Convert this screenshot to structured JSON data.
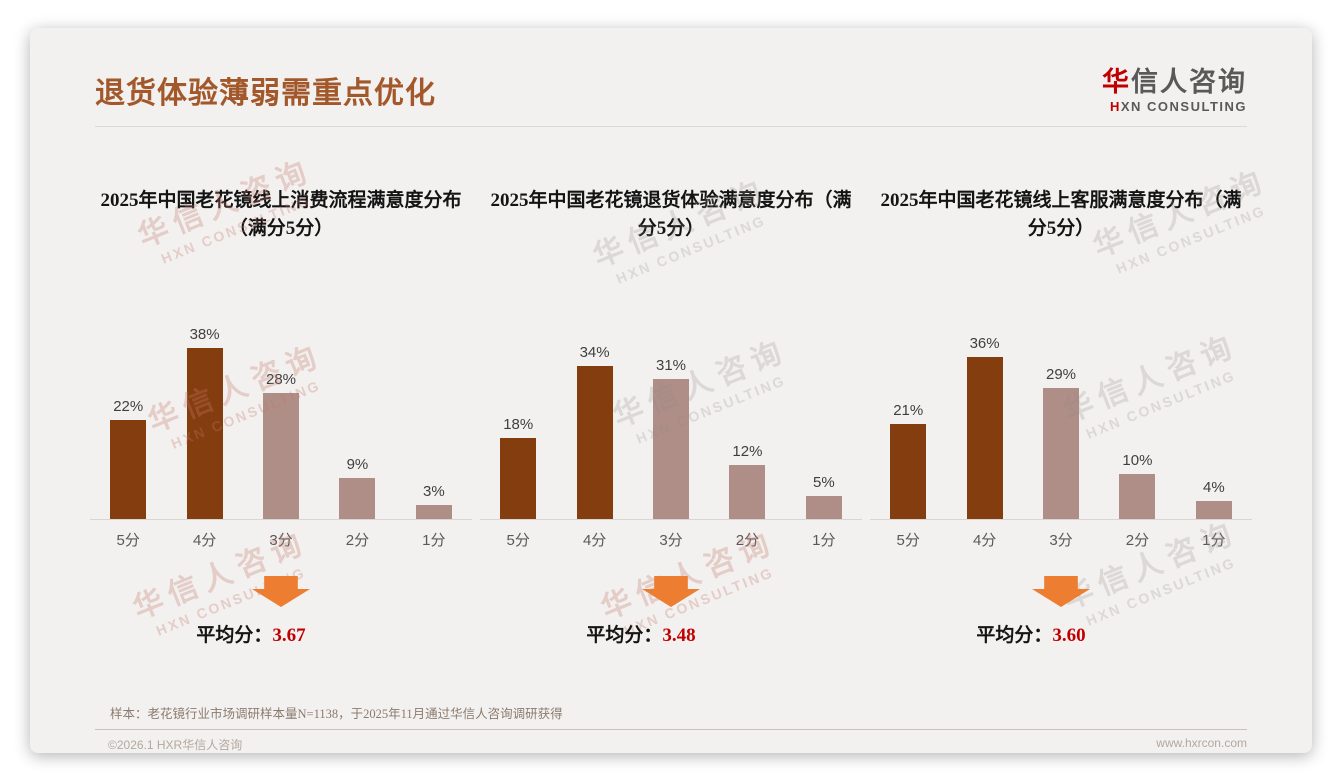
{
  "page": {
    "title": "退货体验薄弱需重点优化",
    "logo": {
      "cn_accent": "华",
      "cn_rest": "信人咨询",
      "en_accent": "H",
      "en_rest": "XN CONSULTING"
    },
    "watermark": {
      "line1": "华信人咨询",
      "line2": "HXN CONSULTING"
    },
    "sample_note": "样本：老花镜行业市场调研样本量N=1138，于2025年11月通过华信人咨询调研获得",
    "footer": {
      "copyright": "©2026.1 HXR华信人咨询",
      "website": "www.hxrcon.com"
    }
  },
  "colors": {
    "page_title": "#A2582A",
    "bar_dark": "#843D0E",
    "bar_light": "#AE8E86",
    "arrow": "#ED7D31",
    "avg_value": "#C00000",
    "logo_accent": "#C00000",
    "card_background": "#F2F1F0"
  },
  "chart_data": [
    {
      "type": "bar",
      "title": "2025年中国老花镜线上消费流程满意度分布（满分5分）",
      "categories": [
        "5分",
        "4分",
        "3分",
        "2分",
        "1分"
      ],
      "values": [
        22,
        38,
        28,
        9,
        3
      ],
      "value_labels": [
        "22%",
        "38%",
        "28%",
        "9%",
        "3%"
      ],
      "bar_colors": [
        "#843D0E",
        "#843D0E",
        "#AE8E86",
        "#AE8E86",
        "#AE8E86"
      ],
      "avg_label": "平均分：",
      "avg_value": "3.67",
      "ylim": [
        0,
        40
      ],
      "grid": false,
      "legend": false,
      "data_labels": true
    },
    {
      "type": "bar",
      "title": "2025年中国老花镜退货体验满意度分布（满分5分）",
      "categories": [
        "5分",
        "4分",
        "3分",
        "2分",
        "1分"
      ],
      "values": [
        18,
        34,
        31,
        12,
        5
      ],
      "value_labels": [
        "18%",
        "34%",
        "31%",
        "12%",
        "5%"
      ],
      "bar_colors": [
        "#843D0E",
        "#843D0E",
        "#AE8E86",
        "#AE8E86",
        "#AE8E86"
      ],
      "avg_label": "平均分：",
      "avg_value": "3.48",
      "ylim": [
        0,
        40
      ],
      "grid": false,
      "legend": false,
      "data_labels": true
    },
    {
      "type": "bar",
      "title": "2025年中国老花镜线上客服满意度分布（满分5分）",
      "categories": [
        "5分",
        "4分",
        "3分",
        "2分",
        "1分"
      ],
      "values": [
        21,
        36,
        29,
        10,
        4
      ],
      "value_labels": [
        "21%",
        "36%",
        "29%",
        "10%",
        "4%"
      ],
      "bar_colors": [
        "#843D0E",
        "#843D0E",
        "#AE8E86",
        "#AE8E86",
        "#AE8E86"
      ],
      "avg_label": "平均分：",
      "avg_value": "3.60",
      "ylim": [
        0,
        40
      ],
      "grid": false,
      "legend": false,
      "data_labels": true
    }
  ]
}
